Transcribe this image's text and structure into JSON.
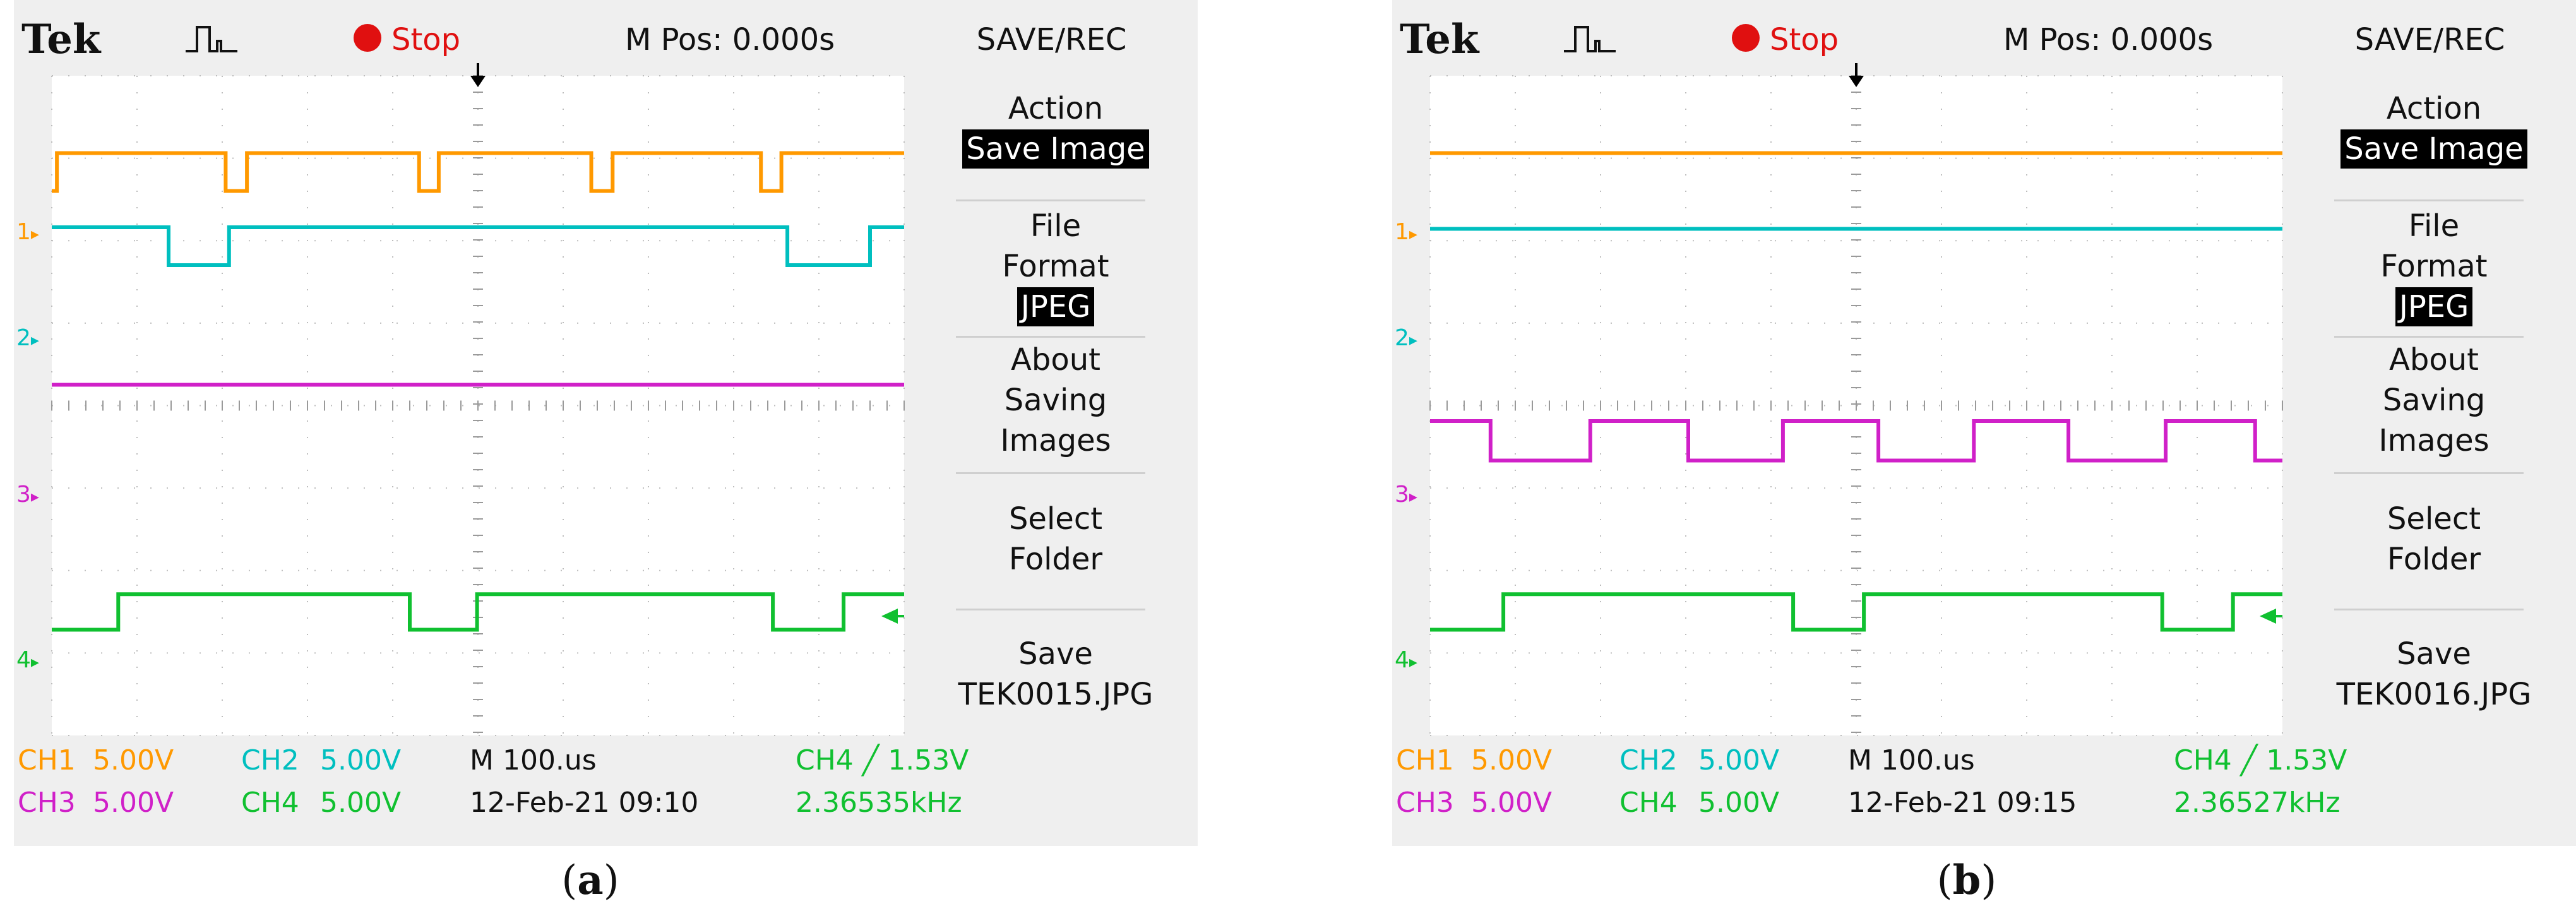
{
  "scopes": [
    {
      "caption_letter": "a",
      "header": {
        "brand": "Tek",
        "status": "Stop",
        "mpos": "M Pos: 0.000s"
      },
      "menu": {
        "title": "SAVE/REC",
        "action_label": "Action",
        "action_value": "Save Image",
        "file_format_label_1": "File",
        "file_format_label_2": "Format",
        "file_format_value": "JPEG",
        "about_1": "About",
        "about_2": "Saving",
        "about_3": "Images",
        "select_1": "Select",
        "select_2": "Folder",
        "save_1": "Save",
        "save_2": "TEK0015.JPG"
      },
      "status": {
        "ch1_label": "CH1",
        "ch1_scale": "5.00V",
        "ch2_label": "CH2",
        "ch2_scale": "5.00V",
        "ch3_label": "CH3",
        "ch3_scale": "5.00V",
        "ch4_label": "CH4",
        "ch4_scale": "5.00V",
        "timebase": "M 100.us",
        "datetime": "12-Feb-21 09:10",
        "trigger": "CH4 ╱ 1.53V",
        "frequency": "2.36535kHz"
      }
    },
    {
      "caption_letter": "b",
      "header": {
        "brand": "Tek",
        "status": "Stop",
        "mpos": "M Pos: 0.000s"
      },
      "menu": {
        "title": "SAVE/REC",
        "action_label": "Action",
        "action_value": "Save Image",
        "file_format_label_1": "File",
        "file_format_label_2": "Format",
        "file_format_value": "JPEG",
        "about_1": "About",
        "about_2": "Saving",
        "about_3": "Images",
        "select_1": "Select",
        "select_2": "Folder",
        "save_1": "Save",
        "save_2": "TEK0016.JPG"
      },
      "status": {
        "ch1_label": "CH1",
        "ch1_scale": "5.00V",
        "ch2_label": "CH2",
        "ch2_scale": "5.00V",
        "ch3_label": "CH3",
        "ch3_scale": "5.00V",
        "ch4_label": "CH4",
        "ch4_scale": "5.00V",
        "timebase": "M 100.us",
        "datetime": "12-Feb-21 09:15",
        "trigger": "CH4 ╱ 1.53V",
        "frequency": "2.36527kHz"
      }
    }
  ],
  "colors": {
    "ch1": "#ff9900",
    "ch2": "#00bfbf",
    "ch3": "#d020c8",
    "ch4": "#10c030",
    "stop": "#e01010"
  },
  "chart_data": [
    {
      "type": "line",
      "x_divisions": 10,
      "y_divisions": 8,
      "grid": true,
      "series": [
        {
          "marker": "1",
          "color": "#ff9900",
          "points": [
            [
              0,
              0.14
            ],
            [
              0.06,
              0.14
            ],
            [
              0.06,
              0.62
            ],
            [
              2.04,
              0.62
            ],
            [
              2.04,
              0.14
            ],
            [
              2.29,
              0.14
            ],
            [
              2.29,
              0.62
            ],
            [
              4.31,
              0.62
            ],
            [
              4.31,
              0.14
            ],
            [
              4.54,
              0.14
            ],
            [
              4.54,
              0.62
            ],
            [
              6.33,
              0.62
            ],
            [
              6.33,
              0.14
            ],
            [
              6.58,
              0.14
            ],
            [
              6.58,
              0.62
            ],
            [
              8.32,
              0.62
            ],
            [
              8.32,
              0.14
            ],
            [
              8.56,
              0.14
            ],
            [
              8.56,
              0.62
            ],
            [
              10,
              0.62
            ]
          ]
        },
        {
          "marker": "2",
          "color": "#00bfbf",
          "points": [
            [
              0,
              1.0
            ],
            [
              1.37,
              1.0
            ],
            [
              1.37,
              0.52
            ],
            [
              2.08,
              0.52
            ],
            [
              2.08,
              1.0
            ],
            [
              8.63,
              1.0
            ],
            [
              8.63,
              0.52
            ],
            [
              9.6,
              0.52
            ],
            [
              9.6,
              1.0
            ],
            [
              10,
              1.0
            ]
          ]
        },
        {
          "marker": "3",
          "color": "#d020c8",
          "points": [
            [
              0,
              0.98
            ],
            [
              10,
              0.98
            ]
          ]
        },
        {
          "marker": "4",
          "color": "#10c030",
          "points": [
            [
              0,
              0.02
            ],
            [
              0.78,
              0.02
            ],
            [
              0.78,
              0.47
            ],
            [
              4.2,
              0.47
            ],
            [
              4.2,
              0.02
            ],
            [
              4.99,
              0.02
            ],
            [
              4.99,
              0.47
            ],
            [
              8.46,
              0.47
            ],
            [
              8.46,
              0.02
            ],
            [
              9.29,
              0.02
            ],
            [
              9.29,
              0.47
            ],
            [
              10,
              0.47
            ]
          ]
        }
      ]
    },
    {
      "type": "line",
      "x_divisions": 10,
      "y_divisions": 8,
      "grid": true,
      "series": [
        {
          "marker": "1",
          "color": "#ff9900",
          "points": [
            [
              0,
              0.62
            ],
            [
              10,
              0.62
            ]
          ]
        },
        {
          "marker": "2",
          "color": "#00bfbf",
          "points": [
            [
              0,
              0.98
            ],
            [
              10,
              0.98
            ]
          ]
        },
        {
          "marker": "3",
          "color": "#d020c8",
          "points": [
            [
              0,
              0.52
            ],
            [
              0.71,
              0.52
            ],
            [
              0.71,
              0.02
            ],
            [
              1.88,
              0.02
            ],
            [
              1.88,
              0.52
            ],
            [
              3.03,
              0.52
            ],
            [
              3.03,
              0.02
            ],
            [
              4.14,
              0.02
            ],
            [
              4.14,
              0.52
            ],
            [
              5.26,
              0.52
            ],
            [
              5.26,
              0.02
            ],
            [
              6.38,
              0.02
            ],
            [
              6.38,
              0.52
            ],
            [
              7.49,
              0.52
            ],
            [
              7.49,
              0.02
            ],
            [
              8.63,
              0.02
            ],
            [
              8.63,
              0.52
            ],
            [
              9.68,
              0.52
            ],
            [
              9.68,
              0.02
            ],
            [
              10,
              0.02
            ]
          ]
        },
        {
          "marker": "4",
          "color": "#10c030",
          "points": [
            [
              0,
              0.02
            ],
            [
              0.86,
              0.02
            ],
            [
              0.86,
              0.47
            ],
            [
              4.26,
              0.47
            ],
            [
              4.26,
              0.02
            ],
            [
              5.09,
              0.02
            ],
            [
              5.09,
              0.47
            ],
            [
              8.59,
              0.47
            ],
            [
              8.59,
              0.02
            ],
            [
              9.42,
              0.02
            ],
            [
              9.42,
              0.47
            ],
            [
              10,
              0.47
            ]
          ]
        }
      ]
    }
  ]
}
